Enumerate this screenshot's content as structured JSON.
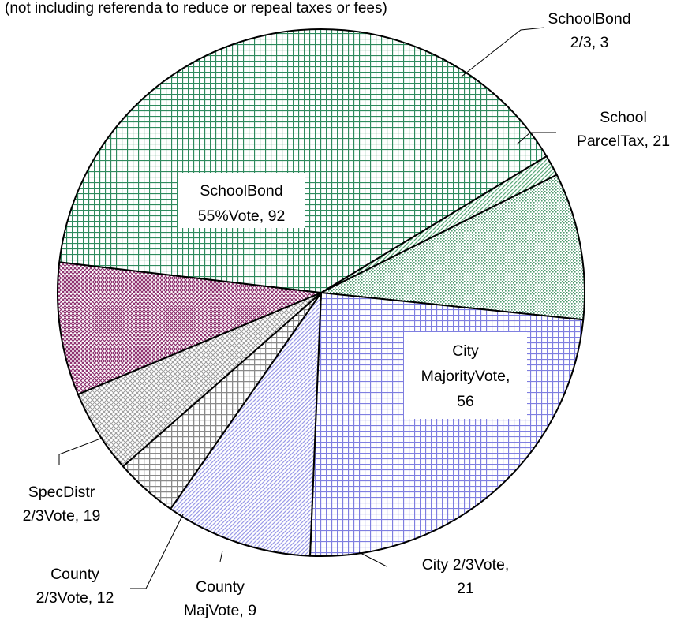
{
  "chart_data": {
    "type": "pie",
    "subtitle": "(not including referenda to reduce or repeal taxes or fees)",
    "slices": [
      {
        "label": [
          "SchoolBond",
          "2/3, 3"
        ],
        "value": 3,
        "color": "#5aa878"
      },
      {
        "label": [
          "School",
          "ParcelTax, 21"
        ],
        "value": 21,
        "color": "#4f9a6e"
      },
      {
        "label": [
          "City",
          "MajorityVote,",
          "56"
        ],
        "value": 56,
        "color": "#7f7fe0"
      },
      {
        "label": [
          "City 2/3Vote,",
          "21"
        ],
        "value": 21,
        "color": "#9a9ae8"
      },
      {
        "label": [
          "County",
          "MajVote, 9"
        ],
        "value": 9,
        "color": "#8a8a8a"
      },
      {
        "label": [
          "County",
          "2/3Vote, 12"
        ],
        "value": 12,
        "color": "#9a9a9a"
      },
      {
        "label": [
          "SpecDistr",
          "2/3Vote, 19"
        ],
        "value": 19,
        "color": "#8a2a6a"
      },
      {
        "label": [
          "SchoolBond",
          "55%Vote, 92"
        ],
        "value": 92,
        "color": "#2f8a5e"
      }
    ],
    "legend": "none"
  }
}
